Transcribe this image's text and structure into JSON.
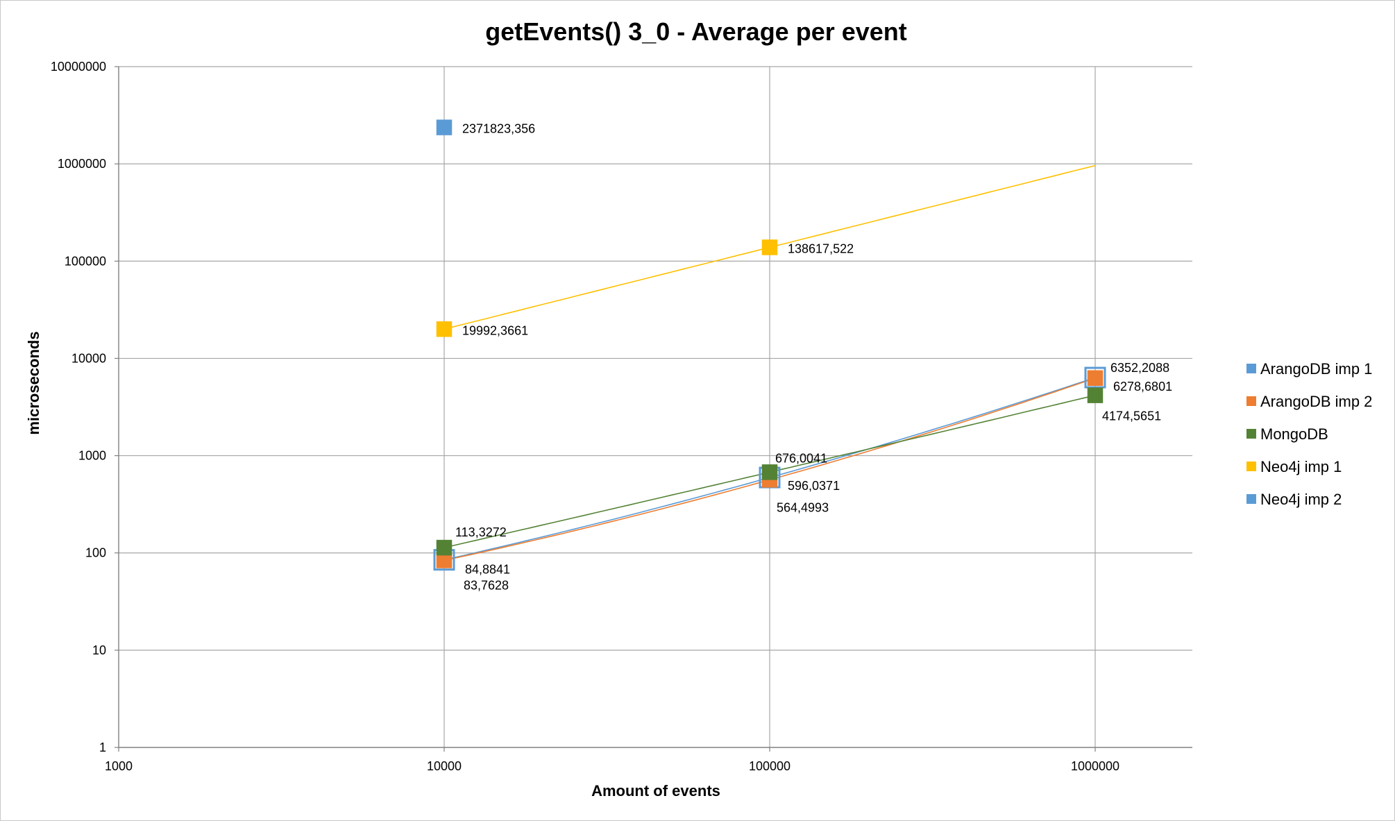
{
  "chart_data": {
    "type": "scatter",
    "title": "getEvents() 3_0 - Average per event",
    "xlabel": "Amount of events",
    "ylabel": "microseconds",
    "x_scale": "log",
    "y_scale": "log",
    "xlim": [
      1000,
      2000000
    ],
    "ylim": [
      1,
      10000000
    ],
    "x_ticks": [
      "1000",
      "10000",
      "100000",
      "1000000"
    ],
    "y_ticks": [
      "1",
      "10",
      "100",
      "1000",
      "10000",
      "100000",
      "1000000",
      "10000000"
    ],
    "grid": true,
    "legend_position": "right",
    "series": [
      {
        "name": "ArangoDB imp 1",
        "color": "#5b9bd5",
        "trendline": true,
        "points": [
          {
            "x": 10000,
            "y": 84.8841,
            "label": "84,8841"
          },
          {
            "x": 100000,
            "y": 596.0371,
            "label": "596,0371"
          },
          {
            "x": 1000000,
            "y": 6352.2088,
            "label": "6352,2088"
          }
        ]
      },
      {
        "name": "ArangoDB imp 2",
        "color": "#ed7d31",
        "trendline": true,
        "points": [
          {
            "x": 10000,
            "y": 83.7628,
            "label": "83,7628"
          },
          {
            "x": 100000,
            "y": 564.4993,
            "label": "564,4993"
          },
          {
            "x": 1000000,
            "y": 6278.6801,
            "label": "6278,6801"
          }
        ]
      },
      {
        "name": "MongoDB",
        "color": "#548235",
        "trendline": true,
        "points": [
          {
            "x": 10000,
            "y": 113.3272,
            "label": "113,3272"
          },
          {
            "x": 100000,
            "y": 676.0041,
            "label": "676,0041"
          },
          {
            "x": 1000000,
            "y": 4174.5651,
            "label": "4174,5651"
          }
        ]
      },
      {
        "name": "Neo4j imp 1",
        "color": "#ffc000",
        "trendline": true,
        "points": [
          {
            "x": 10000,
            "y": 19992.3661,
            "label": "19992,3661"
          },
          {
            "x": 100000,
            "y": 138617.522,
            "label": "138617,522"
          }
        ]
      },
      {
        "name": "Neo4j imp 2",
        "color": "#5b9bd5",
        "trendline": false,
        "points": [
          {
            "x": 10000,
            "y": 2371823.356,
            "label": "2371823,356"
          }
        ]
      }
    ]
  }
}
